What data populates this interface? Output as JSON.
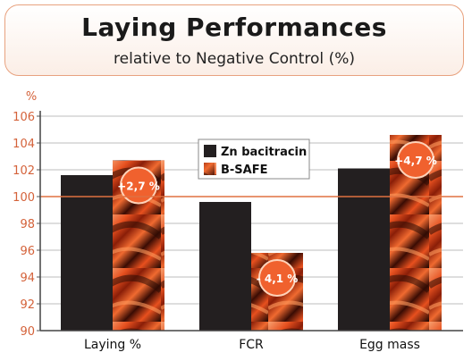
{
  "header": {
    "title": "Laying Performances",
    "subtitle": "relative to Negative Control (%)"
  },
  "colors": {
    "zn_bar": "#231f20",
    "bsafe_base": "#e8501e",
    "axis_text": "#d4623a",
    "grid": "#bdbdbd",
    "ref_line": "#e07040",
    "badge": "#f0612e",
    "title_border": "#e8a27f"
  },
  "chart_data": {
    "type": "bar",
    "ylabel": "%",
    "ylim": [
      90,
      106
    ],
    "yticks": [
      90,
      92,
      94,
      96,
      98,
      100,
      102,
      104,
      106
    ],
    "reference_line": 100,
    "grid": true,
    "legend_position": "center-top",
    "categories": [
      "Laying %",
      "FCR",
      "Egg mass"
    ],
    "series": [
      {
        "name": "Zn bacitracin",
        "values": [
          101.6,
          99.6,
          102.1
        ]
      },
      {
        "name": "B-SAFE",
        "values": [
          102.7,
          95.8,
          104.6
        ]
      }
    ],
    "annotations": [
      "+2,7 %",
      "- 4,1 %",
      "+4,7 %"
    ]
  }
}
